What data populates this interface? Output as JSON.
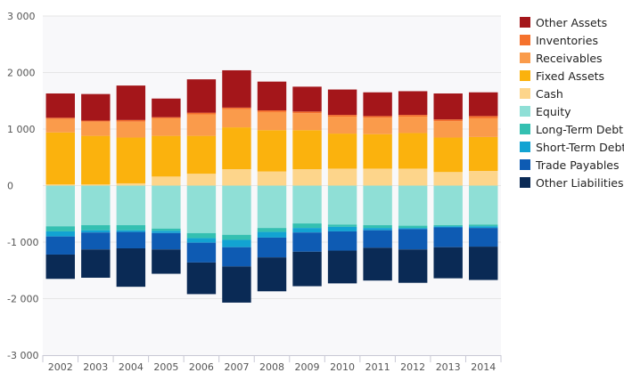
{
  "chart_data": {
    "type": "bar",
    "stacked": true,
    "categories": [
      "2002",
      "2003",
      "2004",
      "2005",
      "2006",
      "2007",
      "2008",
      "2009",
      "2010",
      "2011",
      "2012",
      "2013",
      "2014"
    ],
    "ylim": [
      -3000,
      3000
    ],
    "yticks": [
      -3000,
      -2000,
      -1000,
      0,
      1000,
      2000,
      3000
    ],
    "ytick_labels": [
      "-3 000",
      "-2 000",
      "-1 000",
      "0",
      "1 000",
      "2 000",
      "3 000"
    ],
    "grid": true,
    "legend_position": "right",
    "assets": [
      {
        "name": "Cash",
        "color": "#fdd58b",
        "values": [
          20,
          20,
          40,
          160,
          210,
          290,
          250,
          290,
          300,
          300,
          300,
          240,
          260
        ]
      },
      {
        "name": "Fixed Assets",
        "color": "#fbb20d",
        "values": [
          920,
          860,
          810,
          720,
          670,
          740,
          730,
          690,
          620,
          610,
          630,
          610,
          600
        ]
      },
      {
        "name": "Receivables",
        "color": "#fa9b4b",
        "values": [
          240,
          250,
          280,
          310,
          380,
          320,
          320,
          300,
          300,
          290,
          290,
          290,
          330
        ]
      },
      {
        "name": "Inventories",
        "color": "#f5722d",
        "values": [
          20,
          20,
          30,
          20,
          30,
          30,
          30,
          30,
          30,
          30,
          30,
          30,
          40
        ]
      },
      {
        "name": "Other Assets",
        "color": "#a4161a",
        "values": [
          430,
          470,
          610,
          330,
          590,
          660,
          510,
          440,
          450,
          420,
          420,
          460,
          420
        ]
      }
    ],
    "liabilities": [
      {
        "name": "Equity",
        "color": "#8fdfd6",
        "values": [
          -720,
          -700,
          -700,
          -760,
          -840,
          -870,
          -750,
          -670,
          -690,
          -700,
          -710,
          -700,
          -690
        ]
      },
      {
        "name": "Long-Term Debt",
        "color": "#34c0b1",
        "values": [
          -90,
          -90,
          -90,
          -40,
          -90,
          -90,
          -70,
          -80,
          -40,
          -50,
          -40,
          -20,
          -30
        ]
      },
      {
        "name": "Short-Term Debt",
        "color": "#12a3d2",
        "values": [
          -90,
          -40,
          -30,
          -40,
          -80,
          -130,
          -100,
          -80,
          -80,
          -40,
          -20,
          -20,
          -30
        ]
      },
      {
        "name": "Trade Payables",
        "color": "#0e5bb3",
        "values": [
          -320,
          -300,
          -290,
          -290,
          -350,
          -340,
          -350,
          -340,
          -340,
          -310,
          -360,
          -350,
          -330
        ]
      },
      {
        "name": "Other Liabilities",
        "color": "#0a2a55",
        "values": [
          -430,
          -500,
          -680,
          -430,
          -560,
          -640,
          -600,
          -610,
          -580,
          -580,
          -590,
          -550,
          -590
        ]
      }
    ],
    "legend": [
      "Other Assets",
      "Inventories",
      "Receivables",
      "Fixed Assets",
      "Cash",
      "Equity",
      "Long-Term Debt",
      "Short-Term Debt",
      "Trade Payables",
      "Other Liabilities"
    ],
    "colors": {
      "Other Assets": "#a4161a",
      "Inventories": "#f5722d",
      "Receivables": "#fa9b4b",
      "Fixed Assets": "#fbb20d",
      "Cash": "#fdd58b",
      "Equity": "#8fdfd6",
      "Long-Term Debt": "#34c0b1",
      "Short-Term Debt": "#12a3d2",
      "Trade Payables": "#0e5bb3",
      "Other Liabilities": "#0a2a55"
    },
    "plot_background": "#f8f8fa",
    "grid_color": "#e6e6e6"
  }
}
